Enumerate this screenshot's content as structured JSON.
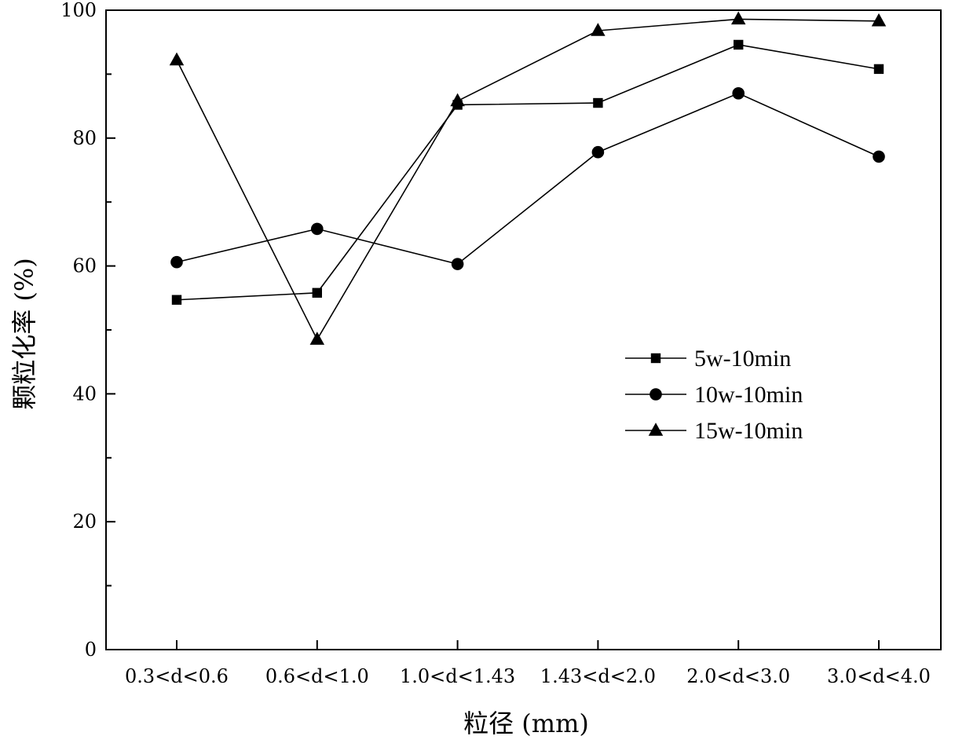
{
  "chart_data": {
    "type": "line",
    "title": "",
    "xlabel": "粒径 (mm)",
    "ylabel": "颗粒化率 (%)",
    "categories": [
      "0.3<d<0.6",
      "0.6<d<1.0",
      "1.0<d<1.43",
      "1.43<d<2.0",
      "2.0<d<3.0",
      "3.0<d<4.0"
    ],
    "ylim": [
      0,
      100
    ],
    "yticks": [
      0,
      20,
      40,
      60,
      80,
      100
    ],
    "grid": false,
    "legend_position": "center-right",
    "series": [
      {
        "name": "5w-10min",
        "marker": "square",
        "color": "#000000",
        "values": [
          54.7,
          55.8,
          85.2,
          85.5,
          94.6,
          90.8
        ]
      },
      {
        "name": "10w-10min",
        "marker": "circle",
        "color": "#000000",
        "values": [
          60.6,
          65.8,
          60.3,
          77.8,
          87.0,
          77.1
        ]
      },
      {
        "name": "15w-10min",
        "marker": "triangle",
        "color": "#000000",
        "values": [
          92.2,
          48.5,
          85.8,
          96.8,
          98.6,
          98.3
        ]
      }
    ]
  }
}
